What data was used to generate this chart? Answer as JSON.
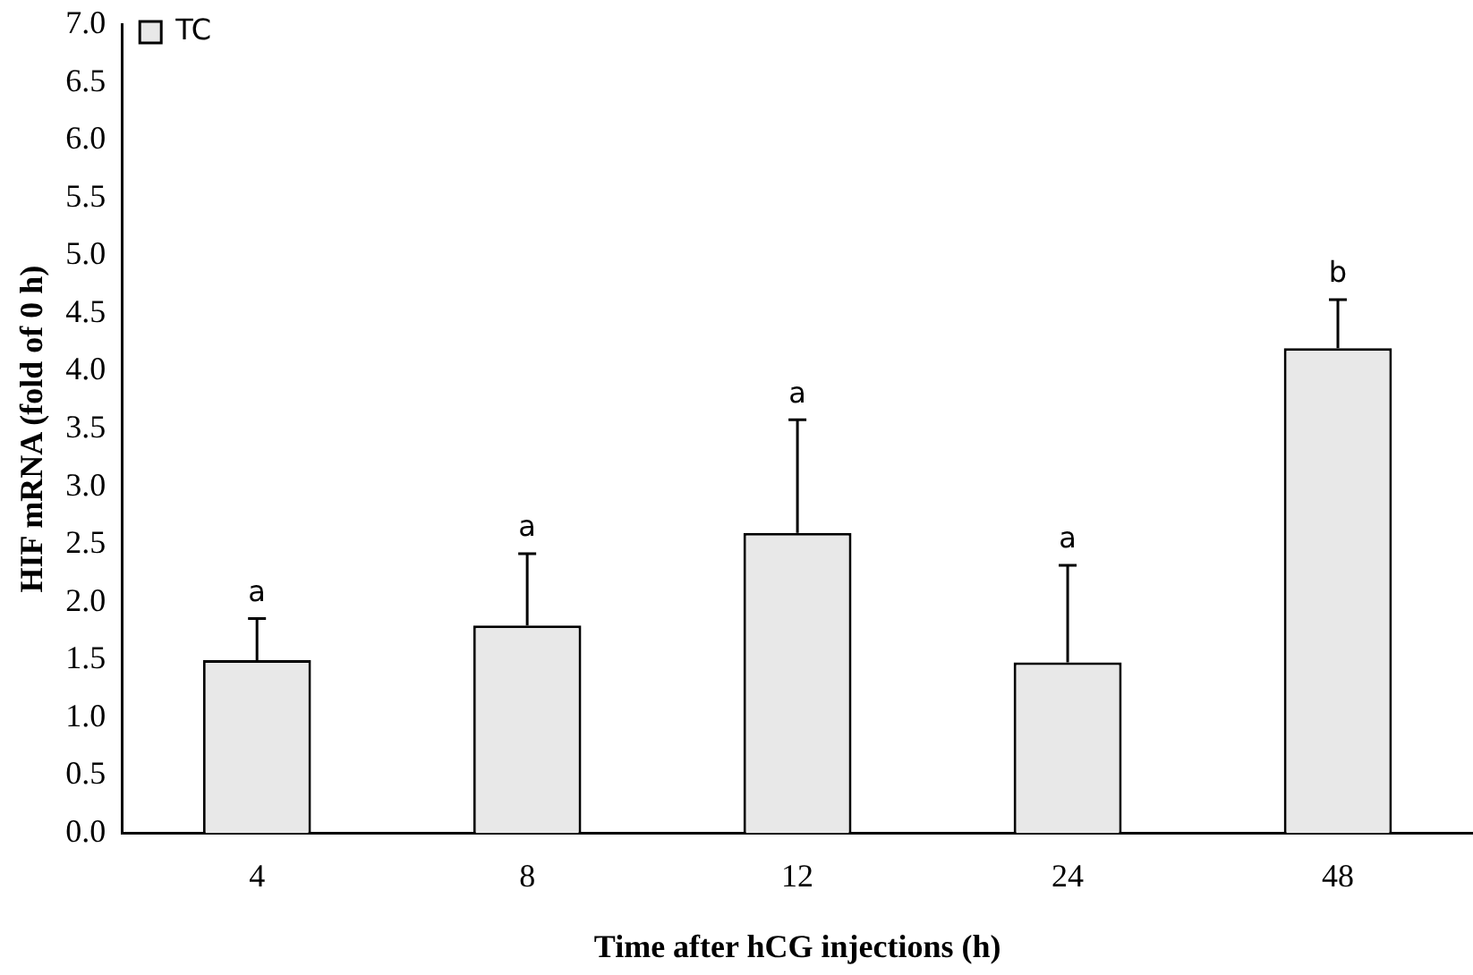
{
  "chart_data": {
    "type": "bar",
    "xlabel": "Time after hCG injections (h)",
    "ylabel": "HIF mRNA (fold of 0 h)",
    "categories": [
      "4",
      "8",
      "12",
      "24",
      "48"
    ],
    "series": [
      {
        "name": "TC",
        "color": "#e8e8e8",
        "values": [
          1.5,
          1.8,
          2.6,
          1.48,
          4.2
        ],
        "errors": [
          [
            1.5,
            1.86
          ],
          [
            1.8,
            2.42
          ],
          [
            2.6,
            3.58
          ],
          [
            1.48,
            2.32
          ],
          [
            4.2,
            4.62
          ]
        ]
      }
    ],
    "ylim": [
      0,
      7
    ],
    "yticks": [
      {
        "value": 0,
        "label": "0.0"
      },
      {
        "value": 0.5,
        "label": "0.5"
      },
      {
        "value": 1,
        "label": "1.0"
      },
      {
        "value": 1.5,
        "label": "1.5"
      },
      {
        "value": 2,
        "label": "2.0"
      },
      {
        "value": 2.5,
        "label": "2.5"
      },
      {
        "value": 3,
        "label": "3.0"
      },
      {
        "value": 3.5,
        "label": "3.5"
      },
      {
        "value": 4,
        "label": "4.0"
      },
      {
        "value": 4.5,
        "label": "4.5"
      },
      {
        "value": 5,
        "label": "5.0"
      },
      {
        "value": 5.5,
        "label": "5.5"
      },
      {
        "value": 6,
        "label": "6.0"
      },
      {
        "value": 6.5,
        "label": "6.5"
      },
      {
        "value": 7,
        "label": "7.0"
      }
    ],
    "annotations": [
      {
        "text": "a",
        "x": "4",
        "y": 1.86
      },
      {
        "text": "a",
        "x": "8",
        "y": 2.42
      },
      {
        "text": "a",
        "x": "12",
        "y": 3.58
      },
      {
        "text": "a",
        "x": "24",
        "y": 2.32
      },
      {
        "text": "b",
        "x": "48",
        "y": 4.62
      }
    ],
    "grid": false,
    "legend": "top left"
  }
}
